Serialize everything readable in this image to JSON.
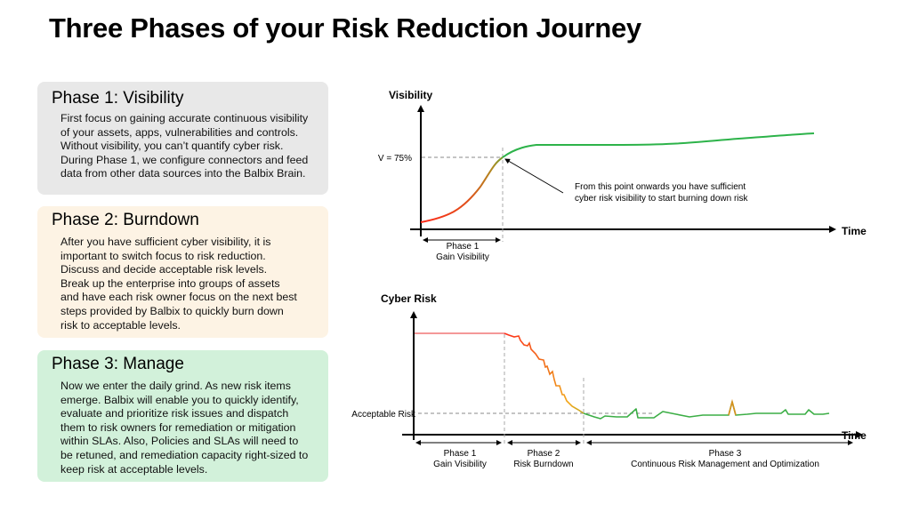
{
  "title": "Three Phases of your Risk Reduction Journey",
  "phases": [
    {
      "heading": "Phase 1: Visibility",
      "lines": [
        "First focus on gaining accurate continuous visibility",
        "of your assets, apps, vulnerabilities and controls.",
        "Without visibility, you can’t quantify cyber risk.",
        "During Phase 1, we configure connectors and feed",
        "data from other data sources into the Balbix Brain."
      ],
      "color": "#e8e8e8"
    },
    {
      "heading": "Phase 2: Burndown",
      "lines": [
        "After you have sufficient cyber visibility, it is",
        "important to switch focus to risk reduction.",
        "Discuss and decide acceptable risk levels.",
        "Break up the enterprise into groups of assets",
        "and have each risk owner focus on the next best",
        "steps provided by Balbix to quickly burn down",
        "risk to acceptable levels."
      ],
      "color": "#fdf3e4"
    },
    {
      "heading": "Phase 3: Manage",
      "lines": [
        "Now we enter the daily grind. As new risk items",
        "emerge. Balbix will enable you to quickly identify,",
        "evaluate and prioritize risk issues and dispatch",
        "them to risk owners for remediation or mitigation",
        "within SLAs. Also, Policies and SLAs will need to",
        "be retuned, and remediation capacity right-sized to",
        "keep risk at acceptable levels."
      ],
      "color": "#d2f1da"
    }
  ],
  "visibility_diagram": {
    "y_label": "Visibility",
    "x_label": "Time",
    "threshold_label": "V = 75%",
    "annotation": [
      "From this point onwards you have sufficient",
      "cyber risk visibility to start burning down risk"
    ],
    "phase_label": [
      "Phase 1",
      "Gain Visibility"
    ],
    "colors": {
      "start": "#ff2a1a",
      "mid": "#d4861a",
      "end": "#2db34a"
    }
  },
  "risk_diagram": {
    "y_label": "Cyber Risk",
    "x_label": "Time",
    "threshold_label": "Acceptable Risk",
    "phases": [
      [
        "Phase 1",
        "Gain Visibility"
      ],
      [
        "Phase 2",
        "Risk Burndown"
      ],
      [
        "Phase 3",
        "Continuous Risk Management and Optimization"
      ]
    ]
  }
}
